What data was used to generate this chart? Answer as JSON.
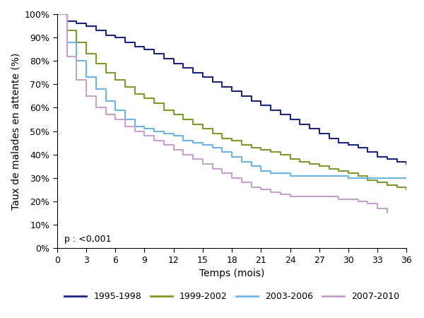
{
  "title": "",
  "xlabel": "Temps (mois)",
  "ylabel": "Taux de malades en attente (%)",
  "xlim": [
    0,
    36
  ],
  "ylim": [
    0,
    1.0
  ],
  "xticks": [
    0,
    3,
    6,
    9,
    12,
    15,
    18,
    21,
    24,
    27,
    30,
    33,
    36
  ],
  "yticks": [
    0.0,
    0.1,
    0.2,
    0.3,
    0.4,
    0.5,
    0.6,
    0.7,
    0.8,
    0.9,
    1.0
  ],
  "ytick_labels": [
    "0%",
    "10%",
    "20%",
    "30%",
    "40%",
    "50%",
    "60%",
    "70%",
    "80%",
    "90%",
    "100%"
  ],
  "p_text": "p : <0,001",
  "legend_labels": [
    "1995-1998",
    "1999-2002",
    "2003-2006",
    "2007-2010"
  ],
  "colors": [
    "#1a2580",
    "#7d9a2e",
    "#6ab4e8",
    "#c8a0d0"
  ],
  "background_color": "#ffffff",
  "curves": {
    "1995-1998": {
      "t": [
        0,
        1,
        2,
        3,
        4,
        5,
        6,
        7,
        8,
        9,
        10,
        11,
        12,
        13,
        14,
        15,
        16,
        17,
        18,
        19,
        20,
        21,
        22,
        23,
        24,
        25,
        26,
        27,
        28,
        29,
        30,
        31,
        32,
        33,
        34,
        35,
        36
      ],
      "s": [
        1.0,
        0.97,
        0.96,
        0.95,
        0.93,
        0.91,
        0.9,
        0.88,
        0.86,
        0.85,
        0.83,
        0.81,
        0.79,
        0.77,
        0.75,
        0.73,
        0.71,
        0.69,
        0.67,
        0.65,
        0.63,
        0.61,
        0.59,
        0.57,
        0.55,
        0.53,
        0.51,
        0.49,
        0.47,
        0.45,
        0.44,
        0.43,
        0.41,
        0.39,
        0.38,
        0.37,
        0.36
      ]
    },
    "1999-2002": {
      "t": [
        0,
        1,
        2,
        3,
        4,
        5,
        6,
        7,
        8,
        9,
        10,
        11,
        12,
        13,
        14,
        15,
        16,
        17,
        18,
        19,
        20,
        21,
        22,
        23,
        24,
        25,
        26,
        27,
        28,
        29,
        30,
        31,
        32,
        33,
        34,
        35,
        36
      ],
      "s": [
        1.0,
        0.93,
        0.88,
        0.83,
        0.79,
        0.75,
        0.72,
        0.69,
        0.66,
        0.64,
        0.62,
        0.59,
        0.57,
        0.55,
        0.53,
        0.51,
        0.49,
        0.47,
        0.46,
        0.44,
        0.43,
        0.42,
        0.41,
        0.4,
        0.38,
        0.37,
        0.36,
        0.35,
        0.34,
        0.33,
        0.32,
        0.31,
        0.29,
        0.28,
        0.27,
        0.26,
        0.25
      ]
    },
    "2003-2006": {
      "t": [
        0,
        1,
        2,
        3,
        4,
        5,
        6,
        7,
        8,
        9,
        10,
        11,
        12,
        13,
        14,
        15,
        16,
        17,
        18,
        19,
        20,
        21,
        22,
        23,
        24,
        25,
        26,
        27,
        28,
        29,
        30,
        31,
        32,
        33,
        34,
        35,
        36
      ],
      "s": [
        1.0,
        0.88,
        0.8,
        0.73,
        0.68,
        0.63,
        0.59,
        0.55,
        0.52,
        0.51,
        0.5,
        0.49,
        0.48,
        0.46,
        0.45,
        0.44,
        0.43,
        0.41,
        0.39,
        0.37,
        0.35,
        0.33,
        0.32,
        0.32,
        0.31,
        0.31,
        0.31,
        0.31,
        0.31,
        0.31,
        0.3,
        0.3,
        0.3,
        0.3,
        0.3,
        0.3,
        0.3
      ]
    },
    "2007-2010": {
      "t": [
        0,
        1,
        2,
        3,
        4,
        5,
        6,
        7,
        8,
        9,
        10,
        11,
        12,
        13,
        14,
        15,
        16,
        17,
        18,
        19,
        20,
        21,
        22,
        23,
        24,
        25,
        26,
        27,
        28,
        29,
        30,
        31,
        32,
        33,
        34
      ],
      "s": [
        1.0,
        0.82,
        0.72,
        0.65,
        0.6,
        0.57,
        0.55,
        0.52,
        0.5,
        0.48,
        0.46,
        0.44,
        0.42,
        0.4,
        0.38,
        0.36,
        0.34,
        0.32,
        0.3,
        0.28,
        0.26,
        0.25,
        0.24,
        0.23,
        0.22,
        0.22,
        0.22,
        0.22,
        0.22,
        0.21,
        0.21,
        0.2,
        0.19,
        0.17,
        0.15
      ]
    }
  }
}
